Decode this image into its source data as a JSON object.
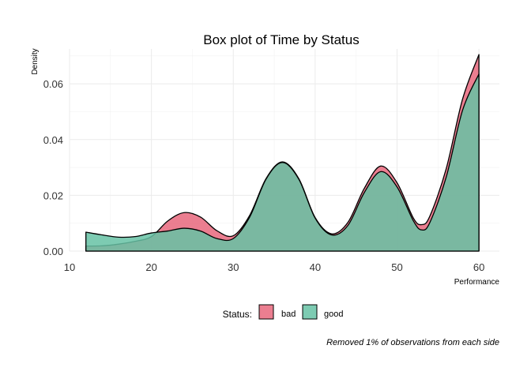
{
  "chart_data": {
    "type": "area",
    "title": "Box plot of Time by Status",
    "xlabel": "Performance",
    "ylabel": "Density",
    "xlim": [
      10,
      62.5
    ],
    "ylim": [
      0,
      0.0725
    ],
    "x_ticks": [
      10,
      20,
      30,
      40,
      50,
      60
    ],
    "y_ticks": [
      0.0,
      0.02,
      0.04,
      0.06
    ],
    "y_tick_labels": [
      "0.00",
      "0.02",
      "0.04",
      "0.06"
    ],
    "grid": true,
    "legend": {
      "title": "Status:",
      "placement": "bottom",
      "entries": [
        "bad",
        "good"
      ]
    },
    "caption": "Removed 1% of observations from each side",
    "series": [
      {
        "name": "bad",
        "color": "#E8677C",
        "x": [
          12,
          14,
          16,
          18,
          20,
          22,
          24,
          26,
          28,
          30,
          32,
          34,
          36,
          38,
          40,
          42,
          44,
          46,
          48,
          50,
          52,
          53,
          54,
          56,
          58,
          60
        ],
        "values": [
          0.0018,
          0.0019,
          0.0025,
          0.0035,
          0.0052,
          0.0108,
          0.0138,
          0.0122,
          0.0073,
          0.0055,
          0.0128,
          0.026,
          0.032,
          0.026,
          0.012,
          0.0062,
          0.0103,
          0.0225,
          0.0305,
          0.0245,
          0.0118,
          0.0095,
          0.0125,
          0.0295,
          0.0545,
          0.0705
        ]
      },
      {
        "name": "good",
        "color": "#66C2A5",
        "x": [
          12,
          14,
          16,
          18,
          20,
          22,
          24,
          26,
          28,
          30,
          32,
          34,
          36,
          38,
          40,
          42,
          44,
          46,
          48,
          50,
          52,
          53,
          54,
          56,
          58,
          60
        ],
        "values": [
          0.0068,
          0.0058,
          0.005,
          0.0052,
          0.0065,
          0.0072,
          0.0082,
          0.0072,
          0.0045,
          0.0045,
          0.0122,
          0.0258,
          0.0318,
          0.0258,
          0.0118,
          0.0058,
          0.0092,
          0.021,
          0.0285,
          0.023,
          0.0108,
          0.0076,
          0.0102,
          0.0265,
          0.0505,
          0.0635
        ]
      }
    ]
  }
}
